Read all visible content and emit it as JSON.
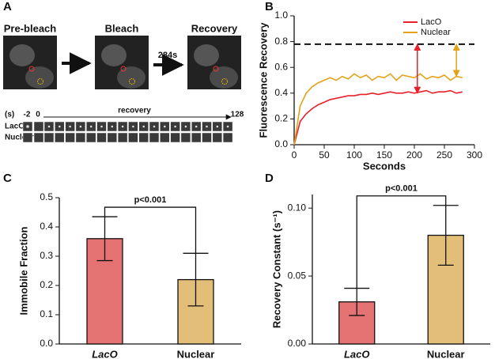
{
  "panel_labels": [
    "A",
    "B",
    "C",
    "D"
  ],
  "panel_a": {
    "stages": [
      "Pre-bleach",
      "Bleach",
      "Recovery"
    ],
    "interval": "284s",
    "strip_unit": "(s)",
    "strip_start": "-2",
    "strip_zero": "0",
    "strip_label": "recovery",
    "strip_end": "128",
    "rows": [
      "LacO",
      "Nuclear"
    ]
  },
  "chart_data": [
    {
      "type": "line",
      "xlabel": "Seconds",
      "ylabel": "Fluorescence Recovery",
      "x": [
        0,
        10,
        20,
        30,
        40,
        50,
        60,
        70,
        80,
        90,
        100,
        110,
        120,
        130,
        140,
        150,
        160,
        170,
        180,
        190,
        200,
        210,
        220,
        230,
        240,
        250,
        260,
        270,
        280
      ],
      "series": [
        {
          "name": "LacO",
          "color": "#e8202a",
          "values": [
            0,
            0.18,
            0.24,
            0.28,
            0.31,
            0.33,
            0.35,
            0.36,
            0.37,
            0.38,
            0.38,
            0.39,
            0.39,
            0.4,
            0.39,
            0.4,
            0.41,
            0.4,
            0.4,
            0.41,
            0.4,
            0.41,
            0.42,
            0.4,
            0.41,
            0.41,
            0.42,
            0.4,
            0.41
          ]
        },
        {
          "name": "Nuclear",
          "color": "#e3a21a",
          "values": [
            0,
            0.3,
            0.4,
            0.45,
            0.48,
            0.5,
            0.52,
            0.5,
            0.53,
            0.51,
            0.55,
            0.52,
            0.54,
            0.5,
            0.53,
            0.52,
            0.55,
            0.5,
            0.54,
            0.53,
            0.52,
            0.55,
            0.51,
            0.53,
            0.52,
            0.54,
            0.5,
            0.53,
            0.52
          ]
        }
      ],
      "reference_line": 0.78,
      "arrows": [
        {
          "x": 205,
          "from": 0.4,
          "to": 0.78,
          "color": "#e8202a"
        },
        {
          "x": 270,
          "from": 0.53,
          "to": 0.78,
          "color": "#e3a21a"
        }
      ],
      "xlim": [
        0,
        300
      ],
      "xticks": [
        0,
        50,
        100,
        150,
        200,
        250,
        300
      ],
      "ylim": [
        0,
        1
      ],
      "yticks": [
        {
          "value": 0,
          "label": "0.0"
        },
        0.2,
        0.4,
        0.6,
        0.8,
        {
          "value": 1,
          "label": "1.0"
        }
      ],
      "legend": "upper right"
    },
    {
      "type": "bar",
      "ylabel": "Immobile Fraction",
      "categories": [
        "LacO",
        "Nuclear"
      ],
      "values": [
        0.36,
        0.22
      ],
      "errors": [
        0.075,
        0.09
      ],
      "colors": [
        "#e57373",
        "#e2be78"
      ],
      "annotation": "p<0.001",
      "ylim": [
        0,
        0.5
      ],
      "yticks": [
        {
          "value": 0,
          "label": "0.0"
        },
        0.1,
        0.2,
        0.3,
        0.4,
        0.5
      ]
    },
    {
      "type": "bar",
      "ylabel": "Recovery Constant (s⁻¹)",
      "categories": [
        "LacO",
        "Nuclear"
      ],
      "values": [
        0.031,
        0.08
      ],
      "errors": [
        0.01,
        0.022
      ],
      "colors": [
        "#e57373",
        "#e2be78"
      ],
      "annotation": "p<0.001",
      "ylim": [
        0,
        0.11
      ],
      "yticks": [
        {
          "value": 0,
          "label": "0.00"
        },
        {
          "value": 0.05,
          "label": "0.05"
        },
        {
          "value": 0.1,
          "label": "0.10"
        }
      ]
    }
  ]
}
